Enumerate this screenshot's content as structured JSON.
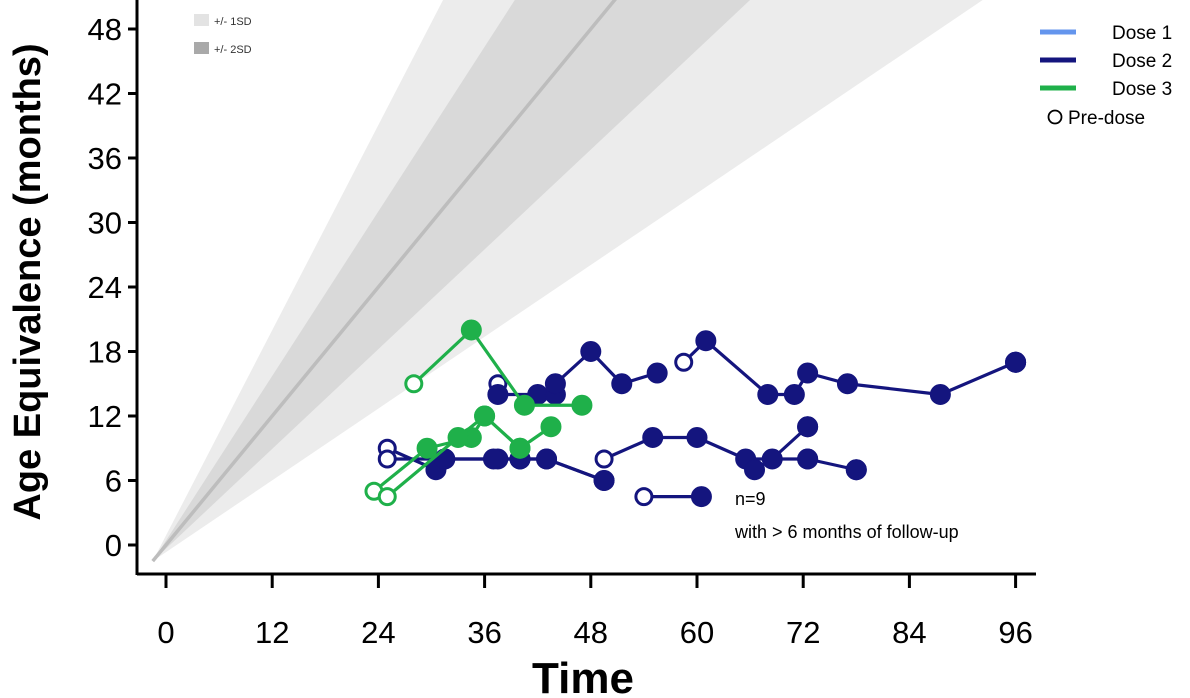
{
  "chart_data": {
    "type": "line",
    "xlabel": "Time",
    "ylabel": "Age Equivalence (months)",
    "xlim": [
      -3,
      101
    ],
    "ylim": [
      -3,
      50
    ],
    "xticks": [
      0,
      12,
      24,
      36,
      48,
      60,
      72,
      84,
      96
    ],
    "yticks": [
      0,
      6,
      12,
      18,
      24,
      30,
      36,
      42,
      48
    ],
    "reference": {
      "sd_bands": [
        {
          "label": "+/- 1SD",
          "slope_low": 0.77,
          "slope_high": 1.28,
          "color": "#d9d9d9"
        },
        {
          "label": "+/- 2SD",
          "slope_low": 0.55,
          "slope_high": 1.6,
          "color": "#ececec"
        }
      ],
      "typical_line": {
        "slope": 1.0,
        "color": "#bdbdbd"
      }
    },
    "legend": {
      "placement": "top-right",
      "entries": [
        {
          "label": "Dose 1",
          "color": "#6495ed",
          "kind": "line"
        },
        {
          "label": "Dose 2",
          "color": "#14157e",
          "kind": "line"
        },
        {
          "label": "Dose 3",
          "color": "#1fb04a",
          "kind": "line"
        },
        {
          "label": "Pre-dose",
          "kind": "open-circle"
        }
      ]
    },
    "annotation": {
      "line1": "n=9",
      "line2": "with > 6 months of follow-up"
    },
    "series": [
      {
        "dose": "Dose 2",
        "color": "#14157e",
        "pre_dose": [
          true,
          false,
          false,
          false,
          false,
          false,
          false,
          false
        ],
        "points": [
          [
            37.5,
            15
          ],
          [
            37.5,
            14
          ],
          [
            42,
            14
          ],
          [
            44,
            14
          ],
          [
            44,
            15
          ],
          [
            48,
            18
          ],
          [
            51.5,
            15
          ],
          [
            55.5,
            16
          ]
        ]
      },
      {
        "dose": "Dose 2",
        "color": "#14157e",
        "pre_dose": [
          true,
          false,
          false,
          false,
          false,
          false,
          false,
          false,
          false,
          false
        ],
        "points": [
          [
            58.5,
            17
          ],
          [
            61,
            19
          ],
          [
            68,
            14
          ],
          [
            71,
            14
          ],
          [
            72.5,
            16
          ],
          [
            77,
            15
          ],
          [
            87.5,
            14
          ],
          [
            96,
            17
          ],
          [
            96,
            17
          ],
          [
            96,
            17
          ]
        ]
      },
      {
        "dose": "Dose 2",
        "color": "#14157e",
        "pre_dose": [
          true,
          false,
          false,
          false,
          false,
          false,
          false
        ],
        "points": [
          [
            25,
            9
          ],
          [
            30.5,
            7
          ],
          [
            31.5,
            8
          ],
          [
            37.5,
            8
          ],
          [
            40,
            8
          ],
          [
            43,
            8
          ],
          [
            49.5,
            6
          ]
        ]
      },
      {
        "dose": "Dose 2",
        "color": "#14157e",
        "pre_dose": [
          true,
          false,
          false,
          false,
          false,
          false
        ],
        "points": [
          [
            25,
            8
          ],
          [
            31.5,
            8
          ],
          [
            37,
            8
          ],
          [
            40,
            8
          ],
          [
            43,
            8
          ],
          [
            49.5,
            6
          ]
        ]
      },
      {
        "dose": "Dose 2",
        "color": "#14157e",
        "pre_dose": [
          true,
          false,
          false,
          false,
          false
        ],
        "points": [
          [
            49.5,
            8
          ],
          [
            55,
            10
          ],
          [
            60,
            10
          ],
          [
            65.5,
            8
          ],
          [
            72.5,
            8
          ]
        ]
      },
      {
        "dose": "Dose 2",
        "color": "#14157e",
        "pre_dose": [
          false,
          false,
          false,
          false
        ],
        "points": [
          [
            66.5,
            7
          ],
          [
            68.5,
            8
          ],
          [
            72.5,
            11
          ],
          [
            72.5,
            11
          ]
        ]
      },
      {
        "dose": "Dose 2",
        "color": "#14157e",
        "pre_dose": [
          false,
          false,
          false
        ],
        "points": [
          [
            72.5,
            8
          ],
          [
            78,
            7
          ],
          [
            78,
            7
          ]
        ]
      },
      {
        "dose": "Dose 2",
        "color": "#14157e",
        "pre_dose": [
          true,
          false
        ],
        "points": [
          [
            54,
            4.5
          ],
          [
            60.5,
            4.5
          ]
        ]
      },
      {
        "dose": "Dose 3",
        "color": "#1fb04a",
        "pre_dose": [
          true,
          false,
          false,
          false
        ],
        "points": [
          [
            28,
            15
          ],
          [
            34.5,
            20
          ],
          [
            40.5,
            13
          ],
          [
            47,
            13
          ]
        ]
      },
      {
        "dose": "Dose 3",
        "color": "#1fb04a",
        "pre_dose": [
          true,
          false,
          false,
          false,
          false
        ],
        "points": [
          [
            23.5,
            5
          ],
          [
            29.5,
            9
          ],
          [
            34.5,
            10
          ],
          [
            36,
            12
          ],
          [
            40,
            9
          ]
        ]
      },
      {
        "dose": "Dose 3",
        "color": "#1fb04a",
        "pre_dose": [
          true,
          false,
          false,
          false,
          false
        ],
        "points": [
          [
            25,
            4.5
          ],
          [
            33,
            10
          ],
          [
            36,
            12
          ],
          [
            40,
            9
          ],
          [
            43.5,
            11
          ]
        ]
      }
    ]
  }
}
